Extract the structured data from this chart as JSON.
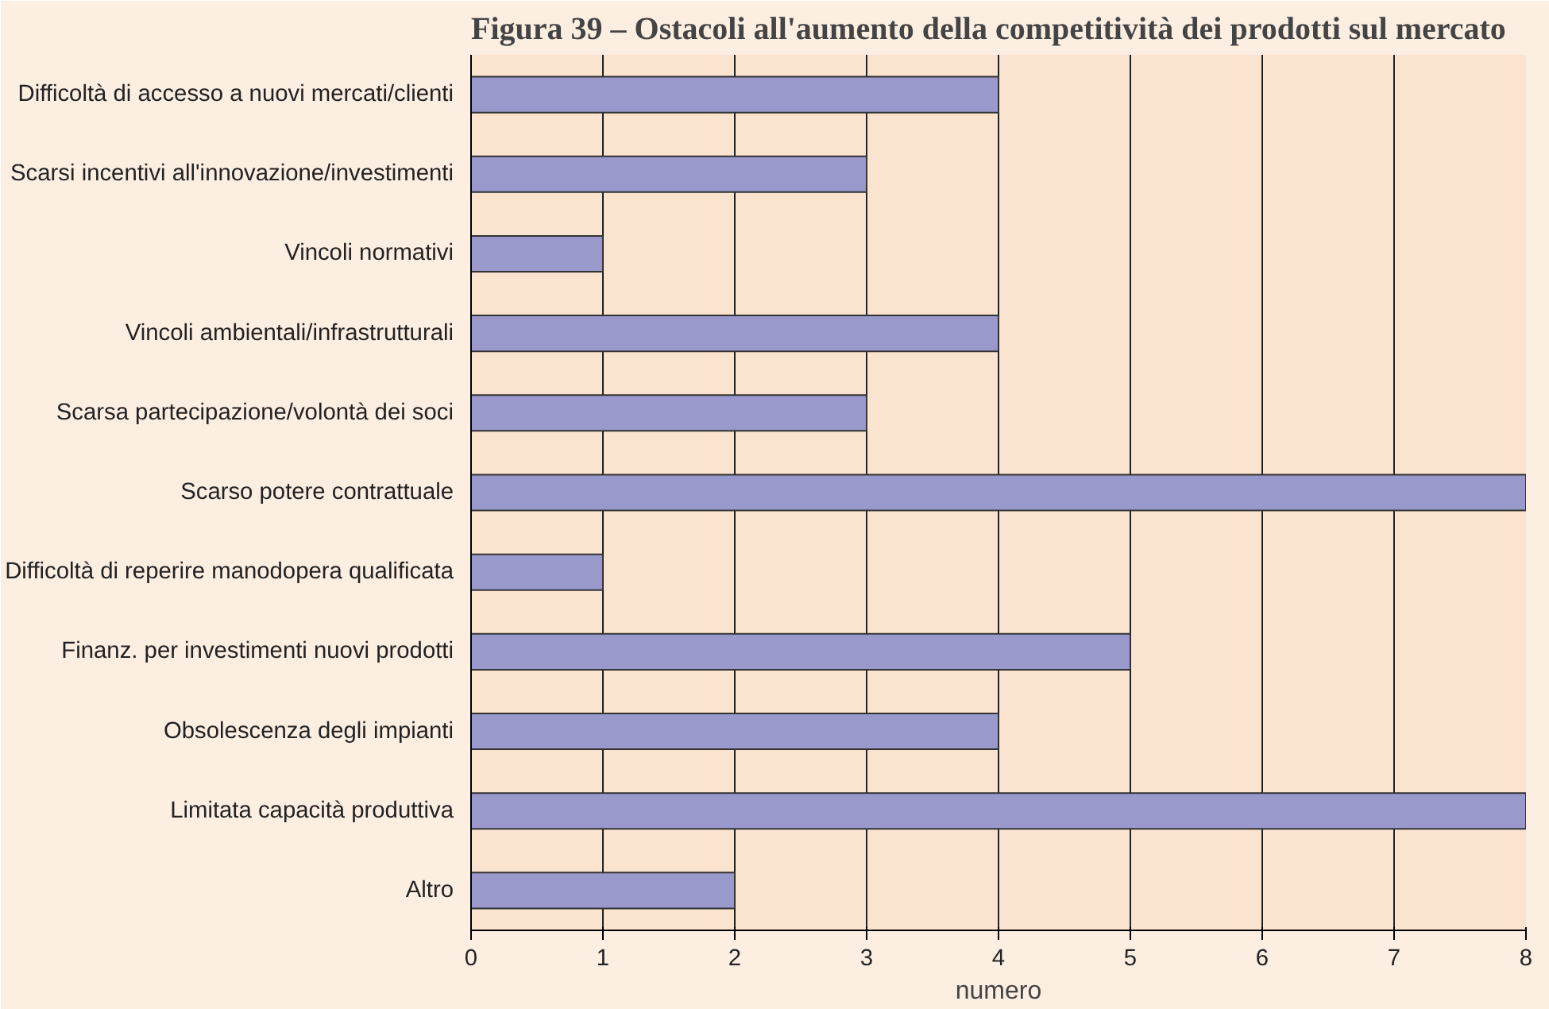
{
  "chart_data": {
    "type": "bar",
    "orientation": "horizontal",
    "title": "Figura 39 – Ostacoli all'aumento della competitività dei prodotti sul mercato",
    "categories": [
      "Difficoltà di accesso a nuovi mercati/clienti",
      "Scarsi incentivi all'innovazione/investimenti",
      "Vincoli normativi",
      "Vincoli ambientali/infrastrutturali",
      "Scarsa partecipazione/volontà dei soci",
      "Scarso potere contrattuale",
      "Difficoltà di reperire manodopera qualificata",
      "Finanz. per investimenti nuovi prodotti",
      "Obsolescenza degli impianti",
      "Limitata capacità produttiva",
      "Altro"
    ],
    "values": [
      4,
      3,
      1,
      4,
      3,
      8,
      1,
      5,
      4,
      8,
      2
    ],
    "color": "#9999cc",
    "xlabel": "numero",
    "xlim": [
      0,
      8
    ],
    "xticks": [
      0,
      1,
      2,
      3,
      4,
      5,
      6,
      7,
      8
    ],
    "grid": "x"
  }
}
